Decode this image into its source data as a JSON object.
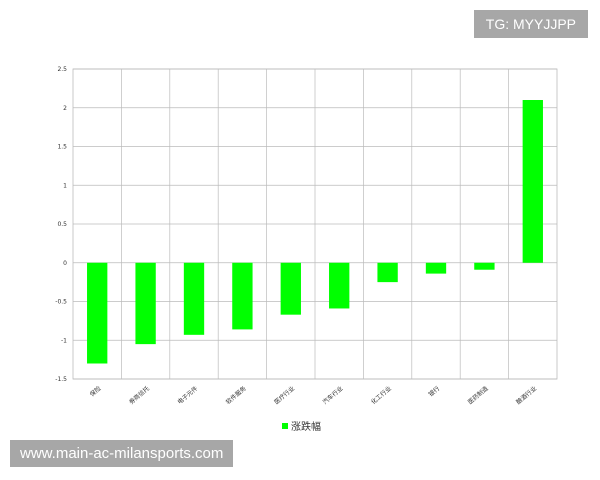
{
  "watermark_tag": "TG: MYYJJPP",
  "watermark_url": "www.main-ac-milansports.com",
  "chart_data": {
    "type": "bar",
    "categories": [
      "保险",
      "券商信托",
      "电子元件",
      "软件服务",
      "医疗行业",
      "汽车行业",
      "化工行业",
      "银行",
      "医药制造",
      "酿酒行业"
    ],
    "series": [
      {
        "name": "涨跌幅",
        "color": "#00ff00",
        "values": [
          -1.3,
          -1.05,
          -0.93,
          -0.86,
          -0.67,
          -0.59,
          -0.25,
          -0.14,
          -0.09,
          2.1
        ]
      }
    ],
    "ylim": [
      -1.5,
      2.5
    ],
    "yticks": [
      "-1.5",
      "-1",
      "-0.5",
      "0",
      "0.5",
      "1",
      "1.5",
      "2",
      "2.5"
    ],
    "grid": true,
    "legend_position": "bottom-center"
  }
}
